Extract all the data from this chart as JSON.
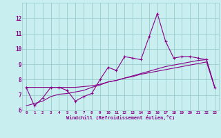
{
  "xlabel": "Windchill (Refroidissement éolien,°C)",
  "x": [
    0,
    1,
    2,
    3,
    4,
    5,
    6,
    7,
    8,
    9,
    10,
    11,
    12,
    13,
    14,
    15,
    16,
    17,
    18,
    19,
    20,
    21,
    22,
    23
  ],
  "y_main": [
    7.5,
    6.3,
    6.8,
    7.5,
    7.5,
    7.3,
    6.6,
    6.9,
    7.1,
    8.0,
    8.8,
    8.6,
    9.5,
    9.4,
    9.3,
    10.8,
    12.3,
    10.5,
    9.4,
    9.5,
    9.5,
    9.4,
    9.3,
    7.5
  ],
  "y_trend1": [
    7.5,
    7.5,
    7.5,
    7.5,
    7.5,
    7.5,
    7.5,
    7.55,
    7.6,
    7.7,
    7.85,
    7.95,
    8.1,
    8.2,
    8.35,
    8.45,
    8.55,
    8.65,
    8.75,
    8.85,
    8.95,
    9.05,
    9.15,
    7.5
  ],
  "y_trend2": [
    6.3,
    6.45,
    6.6,
    6.9,
    7.05,
    7.1,
    7.2,
    7.3,
    7.5,
    7.65,
    7.85,
    7.95,
    8.1,
    8.25,
    8.4,
    8.55,
    8.7,
    8.85,
    8.95,
    9.05,
    9.15,
    9.25,
    9.3,
    7.5
  ],
  "color": "#880088",
  "bg_color": "#c8eef0",
  "grid_color": "#99cccc",
  "ylim": [
    6,
    13
  ],
  "xlim": [
    -0.5,
    23.5
  ],
  "yticks": [
    6,
    7,
    8,
    9,
    10,
    11,
    12
  ],
  "xticks": [
    0,
    1,
    2,
    3,
    4,
    5,
    6,
    7,
    8,
    9,
    10,
    11,
    12,
    13,
    14,
    15,
    16,
    17,
    18,
    19,
    20,
    21,
    22,
    23
  ]
}
